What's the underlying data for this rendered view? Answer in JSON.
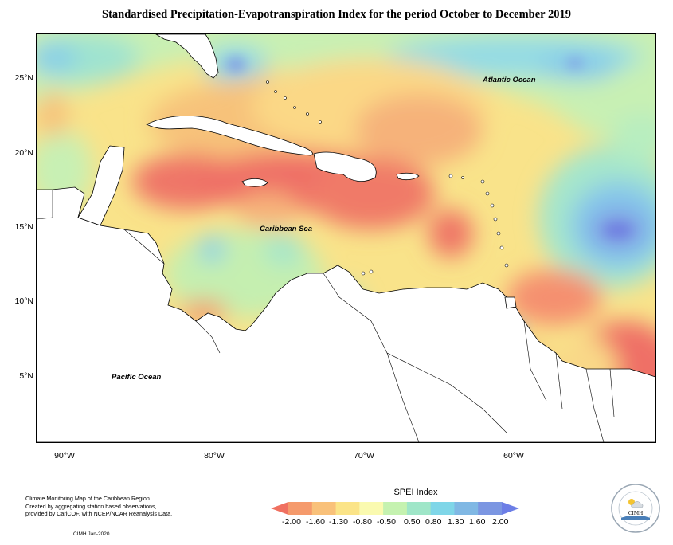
{
  "title": "Standardised Precipitation-Evapotranspiration Index for the period October to December 2019",
  "map": {
    "lat_ticks": [
      "25°N",
      "20°N",
      "15°N",
      "10°N",
      "5°N"
    ],
    "lon_ticks": [
      "90°W",
      "80°W",
      "70°W",
      "60°W"
    ],
    "labels": {
      "atlantic": "Atlantic Ocean",
      "caribbean": "Caribbean Sea",
      "pacific": "Pacific Ocean"
    }
  },
  "legend": {
    "title": "SPEI Index",
    "values": [
      "-2.00",
      "-1.60",
      "-1.30",
      "-0.80",
      "-0.50",
      "0.50",
      "0.80",
      "1.30",
      "1.60",
      "2.00"
    ],
    "colors": [
      "#f07060",
      "#f59a6c",
      "#f9c17a",
      "#fbe488",
      "#fafab0",
      "#c5f2b0",
      "#9fe6c8",
      "#7fd6e8",
      "#80b8e4",
      "#7b96e2",
      "#6c7ee6"
    ]
  },
  "footer": {
    "line1": "Climate Monitoring Map of the Caribbean Region.",
    "line2": "Created by aggregating station based observations,",
    "line3": "provided by CariCOF, with NCEP/NCAR Reanalysis Data.",
    "credit": "CIMH  Jan-2020"
  },
  "logo": {
    "text": "CIMH"
  }
}
